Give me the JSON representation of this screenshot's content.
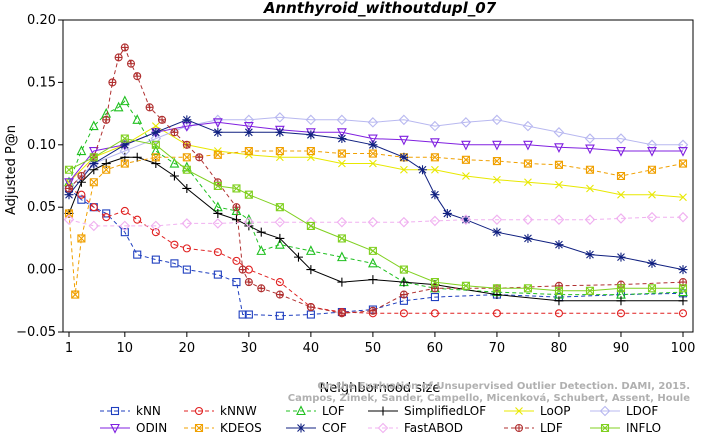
{
  "chart_data": {
    "type": "line",
    "title": "Annthyroid_withoutdupl_07",
    "xlabel": "Neighborhood size",
    "ylabel": "Adjusted P@n",
    "xlim": [
      1,
      100
    ],
    "ylim": [
      -0.05,
      0.2
    ],
    "xticks": [
      "1",
      "10",
      "20",
      "30",
      "40",
      "50",
      "60",
      "70",
      "80",
      "90",
      "100"
    ],
    "yticks": [
      "−0.05",
      "0.00",
      "0.05",
      "0.10",
      "0.15",
      "0.20"
    ],
    "credit": "Campos, Zimek, Sander, Campello, Micenková, Schubert, Assent, Houle",
    "credit_line1": "On the Evaluation of Unsupervised Outlier Detection. DAMI, 2015.",
    "legend_position": "bottom",
    "series": [
      {
        "name": "kNN",
        "color": "#1f3fbf",
        "marker": "square",
        "dash": "4,3",
        "x": [
          1,
          3,
          5,
          7,
          10,
          12,
          15,
          18,
          20,
          25,
          28,
          29,
          30,
          35,
          40,
          45,
          50,
          55,
          60,
          70,
          80,
          90,
          100
        ],
        "y": [
          0.065,
          0.056,
          0.05,
          0.045,
          0.03,
          0.012,
          0.008,
          0.005,
          0.0,
          -0.004,
          -0.01,
          -0.036,
          -0.036,
          -0.037,
          -0.036,
          -0.034,
          -0.032,
          -0.025,
          -0.022,
          -0.02,
          -0.022,
          -0.02,
          -0.019
        ]
      },
      {
        "name": "kNNW",
        "color": "#e02020",
        "marker": "circle",
        "dash": "4,3",
        "x": [
          1,
          3,
          5,
          7,
          10,
          12,
          15,
          18,
          20,
          25,
          28,
          30,
          35,
          40,
          45,
          50,
          55,
          60,
          70,
          80,
          90,
          100
        ],
        "y": [
          0.065,
          0.06,
          0.05,
          0.042,
          0.047,
          0.04,
          0.03,
          0.02,
          0.017,
          0.014,
          0.007,
          0.0,
          -0.01,
          -0.03,
          -0.034,
          -0.035,
          -0.035,
          -0.035,
          -0.035,
          -0.035,
          -0.035,
          -0.035
        ]
      },
      {
        "name": "LOF",
        "color": "#20c020",
        "marker": "triangle",
        "dash": "4,3",
        "x": [
          1,
          3,
          5,
          7,
          9,
          10,
          12,
          15,
          18,
          20,
          25,
          28,
          30,
          32,
          35,
          40,
          45,
          50,
          55,
          60,
          70,
          80,
          90,
          100
        ],
        "y": [
          0.07,
          0.095,
          0.115,
          0.125,
          0.13,
          0.135,
          0.12,
          0.095,
          0.085,
          0.082,
          0.05,
          0.047,
          0.04,
          0.015,
          0.02,
          0.015,
          0.01,
          0.005,
          -0.01,
          -0.015,
          -0.018,
          -0.02,
          -0.02,
          -0.018
        ]
      },
      {
        "name": "SimplifiedLOF",
        "color": "#000000",
        "marker": "plus",
        "dash": "",
        "x": [
          1,
          3,
          5,
          7,
          10,
          12,
          15,
          18,
          20,
          25,
          28,
          30,
          32,
          35,
          38,
          40,
          45,
          50,
          55,
          60,
          70,
          80,
          90,
          100
        ],
        "y": [
          0.045,
          0.07,
          0.08,
          0.085,
          0.09,
          0.09,
          0.085,
          0.075,
          0.065,
          0.045,
          0.04,
          0.035,
          0.03,
          0.025,
          0.01,
          0.0,
          -0.01,
          -0.008,
          -0.01,
          -0.012,
          -0.02,
          -0.025,
          -0.025,
          -0.025
        ]
      },
      {
        "name": "LoOP",
        "color": "#e8e800",
        "marker": "x",
        "dash": "",
        "x": [
          1,
          5,
          10,
          15,
          20,
          25,
          30,
          35,
          40,
          45,
          50,
          55,
          60,
          65,
          70,
          75,
          80,
          85,
          90,
          95,
          100
        ],
        "y": [
          0.07,
          0.09,
          0.1,
          0.115,
          0.1,
          0.095,
          0.092,
          0.09,
          0.09,
          0.085,
          0.085,
          0.08,
          0.08,
          0.075,
          0.072,
          0.07,
          0.068,
          0.065,
          0.06,
          0.06,
          0.058
        ]
      },
      {
        "name": "LDOF",
        "color": "#b8b8f0",
        "marker": "diamond",
        "dash": "",
        "x": [
          1,
          5,
          10,
          15,
          20,
          25,
          30,
          35,
          40,
          45,
          50,
          55,
          60,
          65,
          70,
          75,
          80,
          85,
          90,
          95,
          100
        ],
        "y": [
          0.065,
          0.085,
          0.095,
          0.105,
          0.115,
          0.12,
          0.12,
          0.122,
          0.12,
          0.12,
          0.118,
          0.12,
          0.115,
          0.118,
          0.12,
          0.115,
          0.11,
          0.105,
          0.105,
          0.1,
          0.1
        ]
      },
      {
        "name": "ODIN",
        "color": "#8020e0",
        "marker": "triangle-down",
        "dash": "",
        "x": [
          1,
          5,
          10,
          15,
          20,
          25,
          30,
          35,
          40,
          45,
          50,
          55,
          60,
          65,
          70,
          75,
          80,
          85,
          90,
          95,
          100
        ],
        "y": [
          0.07,
          0.095,
          0.1,
          0.11,
          0.115,
          0.118,
          0.115,
          0.112,
          0.11,
          0.11,
          0.105,
          0.104,
          0.102,
          0.1,
          0.1,
          0.1,
          0.098,
          0.097,
          0.095,
          0.095,
          0.095
        ]
      },
      {
        "name": "KDEOS",
        "color": "#f0a000",
        "marker": "square-x",
        "dash": "4,3",
        "x": [
          1,
          2,
          3,
          5,
          7,
          10,
          15,
          20,
          25,
          30,
          35,
          40,
          45,
          50,
          55,
          60,
          65,
          70,
          75,
          80,
          85,
          90,
          95,
          100
        ],
        "y": [
          0.045,
          -0.02,
          0.025,
          0.07,
          0.08,
          0.085,
          0.09,
          0.09,
          0.092,
          0.095,
          0.095,
          0.095,
          0.093,
          0.093,
          0.09,
          0.09,
          0.088,
          0.087,
          0.085,
          0.084,
          0.08,
          0.075,
          0.08,
          0.085
        ]
      },
      {
        "name": "COF",
        "color": "#102080",
        "marker": "star",
        "dash": "",
        "x": [
          1,
          5,
          10,
          15,
          20,
          25,
          30,
          35,
          40,
          45,
          50,
          55,
          58,
          60,
          62,
          65,
          70,
          75,
          80,
          85,
          90,
          95,
          100
        ],
        "y": [
          0.06,
          0.085,
          0.1,
          0.11,
          0.12,
          0.11,
          0.11,
          0.11,
          0.108,
          0.105,
          0.1,
          0.09,
          0.08,
          0.06,
          0.045,
          0.04,
          0.03,
          0.025,
          0.02,
          0.012,
          0.01,
          0.005,
          0.0
        ]
      },
      {
        "name": "FastABOD",
        "color": "#f0b0f0",
        "marker": "diamond",
        "dash": "4,3",
        "x": [
          1,
          5,
          10,
          15,
          20,
          25,
          30,
          35,
          40,
          45,
          50,
          55,
          60,
          65,
          70,
          75,
          80,
          85,
          90,
          95,
          100
        ],
        "y": [
          0.04,
          0.035,
          0.035,
          0.035,
          0.037,
          0.037,
          0.038,
          0.038,
          0.038,
          0.038,
          0.038,
          0.038,
          0.039,
          0.04,
          0.04,
          0.04,
          0.04,
          0.04,
          0.041,
          0.042,
          0.042
        ]
      },
      {
        "name": "LDF",
        "color": "#b03030",
        "marker": "circle-plus",
        "dash": "4,3",
        "x": [
          1,
          3,
          5,
          7,
          8,
          9,
          10,
          11,
          12,
          14,
          16,
          18,
          20,
          22,
          25,
          28,
          29,
          30,
          32,
          35,
          40,
          45,
          50,
          55,
          60,
          70,
          80,
          90,
          100
        ],
        "y": [
          0.065,
          0.075,
          0.09,
          0.12,
          0.15,
          0.17,
          0.178,
          0.165,
          0.155,
          0.13,
          0.12,
          0.11,
          0.1,
          0.09,
          0.07,
          0.05,
          0.0,
          -0.01,
          -0.015,
          -0.02,
          -0.03,
          -0.035,
          -0.033,
          -0.02,
          -0.015,
          -0.015,
          -0.013,
          -0.012,
          -0.01
        ]
      },
      {
        "name": "INFLO",
        "color": "#80d020",
        "marker": "square-x",
        "dash": "",
        "x": [
          1,
          5,
          10,
          15,
          20,
          25,
          28,
          30,
          35,
          40,
          45,
          50,
          55,
          60,
          65,
          70,
          75,
          80,
          85,
          90,
          95,
          100
        ],
        "y": [
          0.08,
          0.09,
          0.105,
          0.1,
          0.08,
          0.067,
          0.065,
          0.06,
          0.05,
          0.035,
          0.025,
          0.015,
          0.0,
          -0.01,
          -0.013,
          -0.015,
          -0.015,
          -0.017,
          -0.017,
          -0.015,
          -0.015,
          -0.015
        ]
      }
    ]
  }
}
